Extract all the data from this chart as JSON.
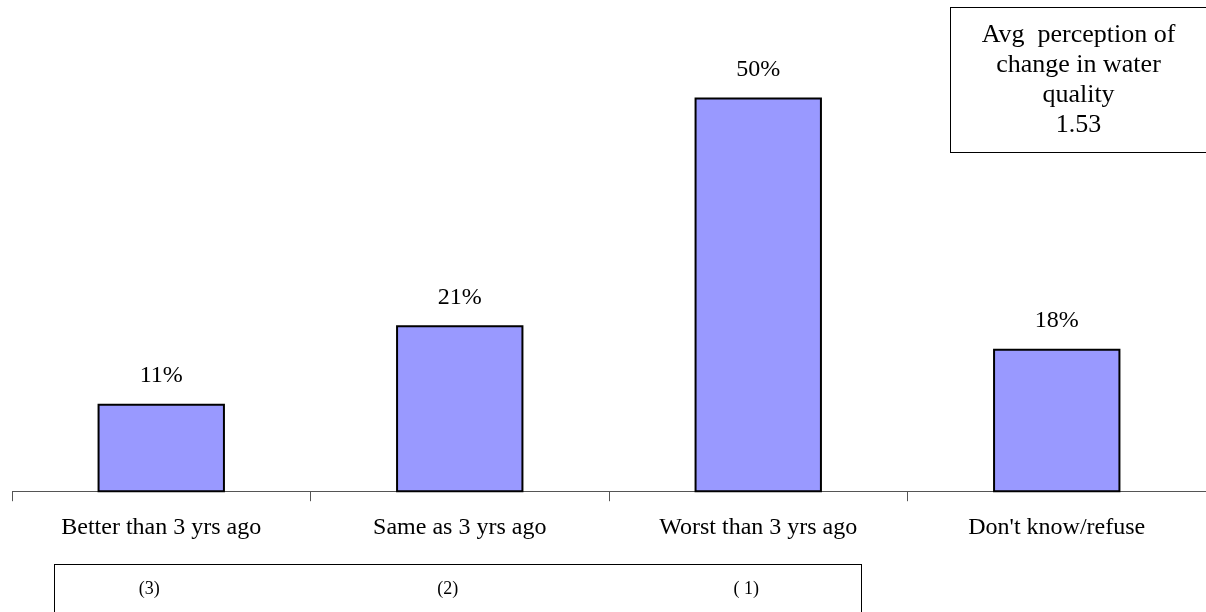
{
  "chart_data": {
    "type": "bar",
    "categories": [
      "Better than 3 yrs ago",
      "Same as 3 yrs ago",
      "Worst than 3 yrs ago",
      "Don't know/refuse"
    ],
    "values": [
      11,
      21,
      50,
      18
    ],
    "color": "#9999ff",
    "value_labels": [
      "11%",
      "21%",
      "50%",
      "18%"
    ],
    "annotations": [
      "Avg  perception of change in water quality\n1.53",
      "(3)",
      "(2)",
      "( 1)"
    ]
  }
}
